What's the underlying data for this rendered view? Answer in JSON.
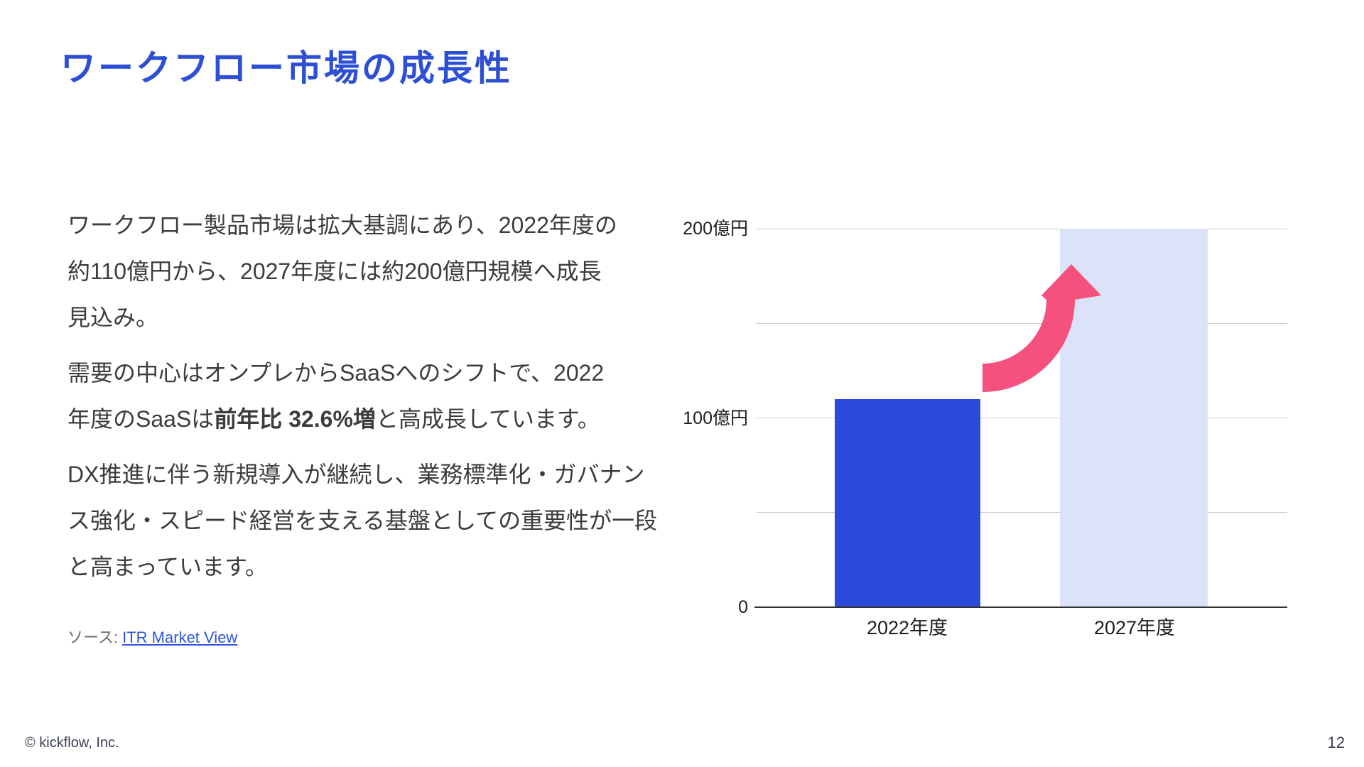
{
  "slide": {
    "title": "ワークフロー市場の成長性"
  },
  "body": {
    "p1_line1": "ワークフロー製品市場は拡大基調にあり、2022年度の",
    "p1_line2": "約110億円から、2027年度には約200億円規模へ成長",
    "p1_line3": "見込み。",
    "p2_line1": "需要の中心はオンプレからSaaSへのシフトで、2022",
    "p2_line2_pre": "年度のSaaSは",
    "p2_line2_bold": "前年比 32.6%増",
    "p2_line2_post": "と高成長しています。",
    "p3_line1": "DX推進に伴う新規導入が継続し、業務標準化・ガバナン",
    "p3_line2": "ス強化・スピード経営を支える基盤としての重要性が一段",
    "p3_line3": "と高まっています。"
  },
  "source": {
    "label": "ソース: ",
    "link_text": "ITR Market View"
  },
  "footer": {
    "copyright": "© kickflow, Inc.",
    "page_number": "12"
  },
  "chart_data": {
    "type": "bar",
    "title": "",
    "xlabel": "",
    "ylabel": "",
    "categories": [
      "2022年度",
      "2027年度"
    ],
    "values": [
      110,
      200
    ],
    "unit": "億円",
    "ylim": [
      0,
      200
    ],
    "grid": true,
    "legend": false,
    "gridlines": [
      50,
      100,
      150,
      200
    ],
    "yticks": [
      {
        "value": 200,
        "label": "200億円"
      },
      {
        "value": 100,
        "label": "100億円"
      },
      {
        "value": 0,
        "label": "0"
      }
    ],
    "bar_colors": [
      "#2B4AD9",
      "#DCE3F8"
    ],
    "annotation": "curved-growth-arrow"
  },
  "colors": {
    "brand-blue": "#2D4FD3",
    "bar-2022": "#2B4AD9",
    "bar-2027": "#DCE3F8",
    "arrow-pink": "#F4517E",
    "text-dark": "#3C3C3C",
    "axis-label": "#1E1E1E",
    "gridline-color": "#CBCBCB",
    "axis-line-color": "#333333",
    "link-blue": "#2F55DA",
    "muted-gray": "#6E6E6E",
    "footer-color": "#3A4154"
  }
}
